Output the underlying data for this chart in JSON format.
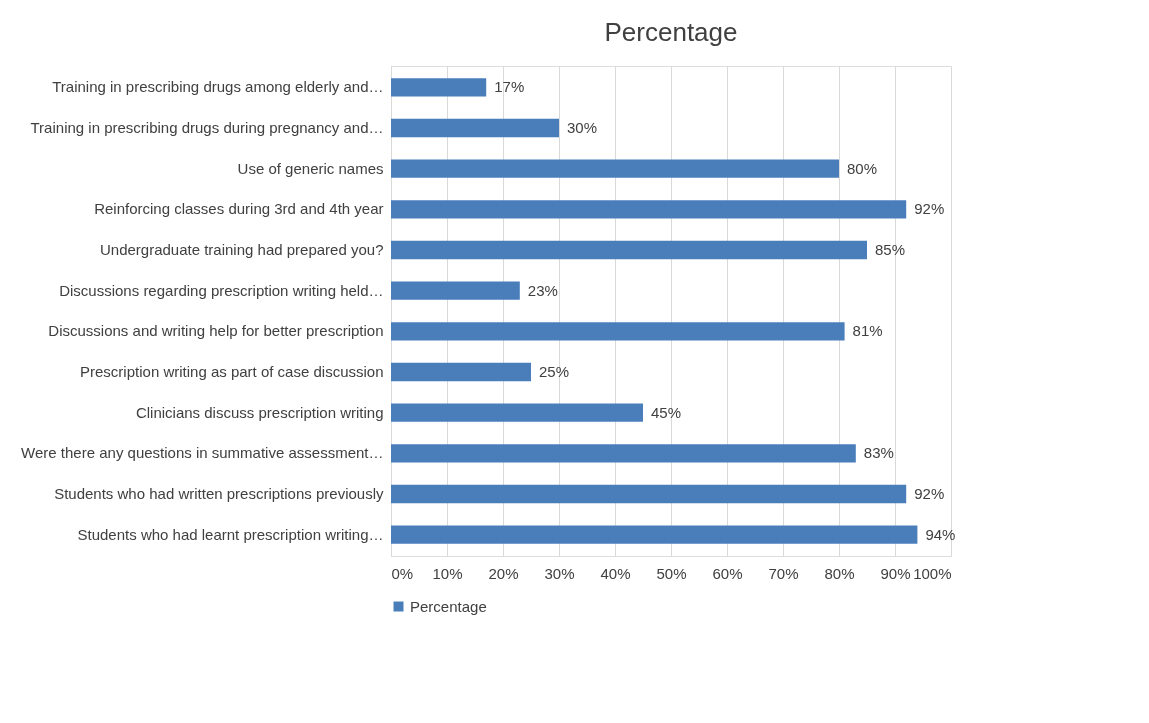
{
  "chart_data": {
    "type": "bar",
    "orientation": "horizontal",
    "title": "Percentage",
    "categories": [
      "Training in prescribing drugs among elderly and…",
      "Training in prescribing drugs during pregnancy and…",
      "Use of  generic names",
      "Reinforcing classes during 3rd and 4th year",
      "Undergraduate training had prepared you?",
      "Discussions regarding prescription writing held…",
      "Discussions and writing help for better prescription",
      "Prescription writing as part of case discussion",
      "Clinicians discuss prescription writing",
      "Were there any questions in summative assessment…",
      "Students who had written prescriptions previously",
      "Students who had learnt prescription writing…"
    ],
    "series": [
      {
        "name": "Percentage",
        "color": "#4a7ebb",
        "values": [
          17,
          30,
          80,
          92,
          85,
          23,
          81,
          25,
          45,
          83,
          92,
          94
        ],
        "value_labels": [
          "17%",
          "30%",
          "80%",
          "92%",
          "85%",
          "23%",
          "81%",
          "25%",
          "45%",
          "83%",
          "92%",
          "94%"
        ]
      }
    ],
    "xlim": [
      0,
      100
    ],
    "xticks": [
      {
        "value": 0,
        "label": "0%"
      },
      {
        "value": 10,
        "label": "10%"
      },
      {
        "value": 20,
        "label": "20%"
      },
      {
        "value": 30,
        "label": "30%"
      },
      {
        "value": 40,
        "label": "40%"
      },
      {
        "value": 50,
        "label": "50%"
      },
      {
        "value": 60,
        "label": "60%"
      },
      {
        "value": 70,
        "label": "70%"
      },
      {
        "value": 80,
        "label": "80%"
      },
      {
        "value": 90,
        "label": "90%"
      },
      {
        "value": 100,
        "label": "100%"
      }
    ],
    "grid": "x",
    "legend": "bottom"
  }
}
